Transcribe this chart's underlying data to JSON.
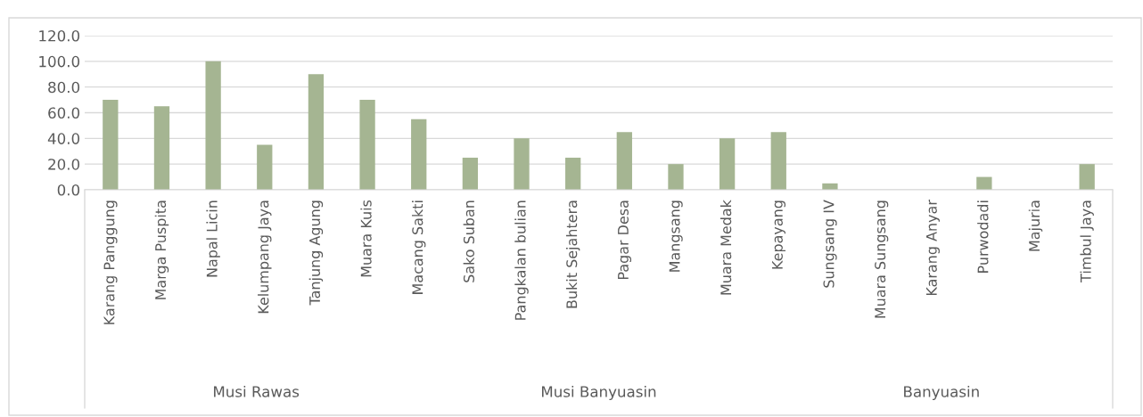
{
  "chart_data": {
    "type": "bar",
    "categories": [
      "Karang Panggung",
      "Marga Puspita",
      "Napal Licin",
      "Kelumpang Jaya",
      "Tanjung Agung",
      "Muara Kuis",
      "Macang Sakti",
      "Sako Suban",
      "Pangkalan bulian",
      "Bukit Sejahtera",
      "Pagar Desa",
      "Mangsang",
      "Muara Medak",
      "Kepayang",
      "Sungsang IV",
      "Muara Sungsang",
      "Karang Anyar",
      "Purwodadi",
      "Majuria",
      "Timbul Jaya"
    ],
    "values": [
      70,
      65,
      100,
      35,
      90,
      70,
      55,
      25,
      40,
      25,
      45,
      20,
      40,
      45,
      5,
      0,
      0,
      10,
      0,
      20
    ],
    "color": "#a5b592",
    "ylim": [
      0,
      120
    ],
    "yticks": [
      {
        "value": 0,
        "label": "0.0"
      },
      {
        "value": 20,
        "label": "20.0"
      },
      {
        "value": 40,
        "label": "40.0"
      },
      {
        "value": 60,
        "label": "60.0"
      },
      {
        "value": 80,
        "label": "80.0"
      },
      {
        "value": 100,
        "label": "100.0"
      },
      {
        "value": 120,
        "label": "120.0"
      }
    ],
    "grid": "y",
    "annotations": [
      "Musi Rawas",
      "Musi Banyuasin",
      "Banyuasin"
    ]
  }
}
